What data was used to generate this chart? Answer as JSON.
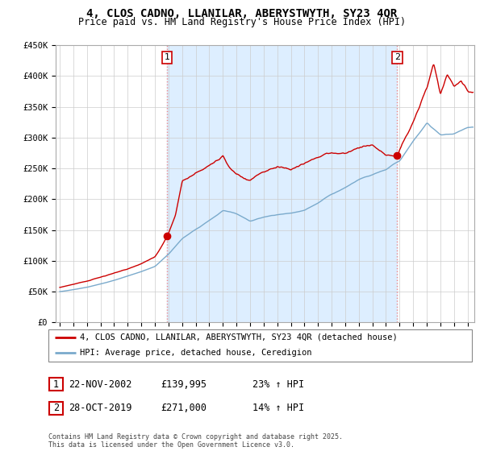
{
  "title": "4, CLOS CADNO, LLANILAR, ABERYSTWYTH, SY23 4QR",
  "subtitle": "Price paid vs. HM Land Registry's House Price Index (HPI)",
  "legend_line1": "4, CLOS CADNO, LLANILAR, ABERYSTWYTH, SY23 4QR (detached house)",
  "legend_line2": "HPI: Average price, detached house, Ceredigion",
  "annotation1_label": "1",
  "annotation1_date": "22-NOV-2002",
  "annotation1_price": "£139,995",
  "annotation1_hpi": "23% ↑ HPI",
  "annotation2_label": "2",
  "annotation2_date": "28-OCT-2019",
  "annotation2_price": "£271,000",
  "annotation2_hpi": "14% ↑ HPI",
  "footer": "Contains HM Land Registry data © Crown copyright and database right 2025.\nThis data is licensed under the Open Government Licence v3.0.",
  "red_color": "#cc0000",
  "blue_color": "#7aaacc",
  "shade_color": "#ddeeff",
  "vline_color": "#ee8888",
  "ylim": [
    0,
    450000
  ],
  "yticks": [
    0,
    50000,
    100000,
    150000,
    200000,
    250000,
    300000,
    350000,
    400000,
    450000
  ],
  "xlim_start": 1994.7,
  "xlim_end": 2025.5,
  "purchase1_x": 2002.9,
  "purchase1_y": 139995,
  "purchase2_x": 2019.83,
  "purchase2_y": 271000,
  "hpi_knots_x": [
    1995,
    1996,
    1997,
    1998,
    1999,
    2000,
    2001,
    2002,
    2003,
    2004,
    2005,
    2006,
    2007,
    2008,
    2009,
    2010,
    2011,
    2012,
    2013,
    2014,
    2015,
    2016,
    2017,
    2018,
    2019,
    2020,
    2021,
    2022,
    2023,
    2024,
    2025
  ],
  "hpi_knots_y": [
    50000,
    53000,
    57000,
    62000,
    68000,
    75000,
    82000,
    90000,
    110000,
    135000,
    150000,
    165000,
    180000,
    175000,
    163000,
    170000,
    175000,
    178000,
    183000,
    195000,
    210000,
    220000,
    233000,
    240000,
    248000,
    262000,
    295000,
    325000,
    305000,
    305000,
    315000
  ],
  "red_knots_x": [
    1995,
    1996,
    1997,
    1998,
    1999,
    2000,
    2001,
    2002,
    2002.9,
    2003.5,
    2004,
    2005,
    2006,
    2007,
    2007.5,
    2008,
    2009,
    2010,
    2011,
    2012,
    2013,
    2014,
    2015,
    2016,
    2017,
    2018,
    2019,
    2019.83,
    2020,
    2021,
    2022,
    2022.5,
    2023,
    2023.5,
    2024,
    2024.5,
    2025
  ],
  "red_knots_y": [
    57000,
    62000,
    67000,
    73000,
    80000,
    87000,
    96000,
    108000,
    139995,
    175000,
    230000,
    245000,
    260000,
    275000,
    255000,
    245000,
    235000,
    245000,
    255000,
    245000,
    255000,
    265000,
    270000,
    270000,
    278000,
    285000,
    270000,
    271000,
    280000,
    320000,
    375000,
    410000,
    360000,
    390000,
    370000,
    380000,
    365000
  ]
}
